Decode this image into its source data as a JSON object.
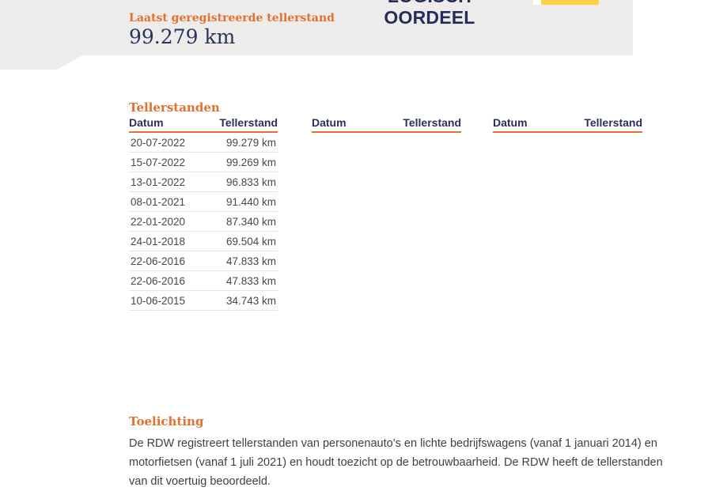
{
  "page": {
    "header": {
      "last_reading_label": "Laatst geregistreerde tellerstand",
      "last_reading_value": "99.279 km",
      "judgement": {
        "line1": "LOGISCH",
        "line2": "OORDEEL"
      }
    },
    "tellerstanden": {
      "title": "Tellerstanden",
      "columns": {
        "datum": "Datum",
        "tellerstand": "Tellerstand"
      },
      "rows": [
        {
          "datum": "20-07-2022",
          "tellerstand": "99.279 km"
        },
        {
          "datum": "15-07-2022",
          "tellerstand": "99.269 km"
        },
        {
          "datum": "13-01-2022",
          "tellerstand": "96.833 km"
        },
        {
          "datum": "08-01-2021",
          "tellerstand": "91.440 km"
        },
        {
          "datum": "22-01-2020",
          "tellerstand": "87.340 km"
        },
        {
          "datum": "24-01-2018",
          "tellerstand": "69.504 km"
        },
        {
          "datum": "22-06-2016",
          "tellerstand": "47.833 km"
        },
        {
          "datum": "22-06-2016",
          "tellerstand": "47.833 km"
        },
        {
          "datum": "10-06-2015",
          "tellerstand": "34.743 km"
        }
      ]
    },
    "toelichting": {
      "title": "Toelichting",
      "line1": "De RDW registreert tellerstanden van personenauto’s en lichte bedrijfswagens (vanaf 1 januari 2014) en",
      "line2": "motorfietsen (vanaf 1 juli 2021) en houdt toezicht op de betrouwbaarheid. De RDW heeft de tellerstanden",
      "line3": "van dit voertuig beoordeeld."
    },
    "colors": {
      "accent_orange": "#e2702e",
      "navy": "#252c5a",
      "gray_band": "#eeeceb",
      "yellow": "#fcd143",
      "body_text": "#3e4046",
      "row_separator": "#e3e0dd"
    }
  }
}
